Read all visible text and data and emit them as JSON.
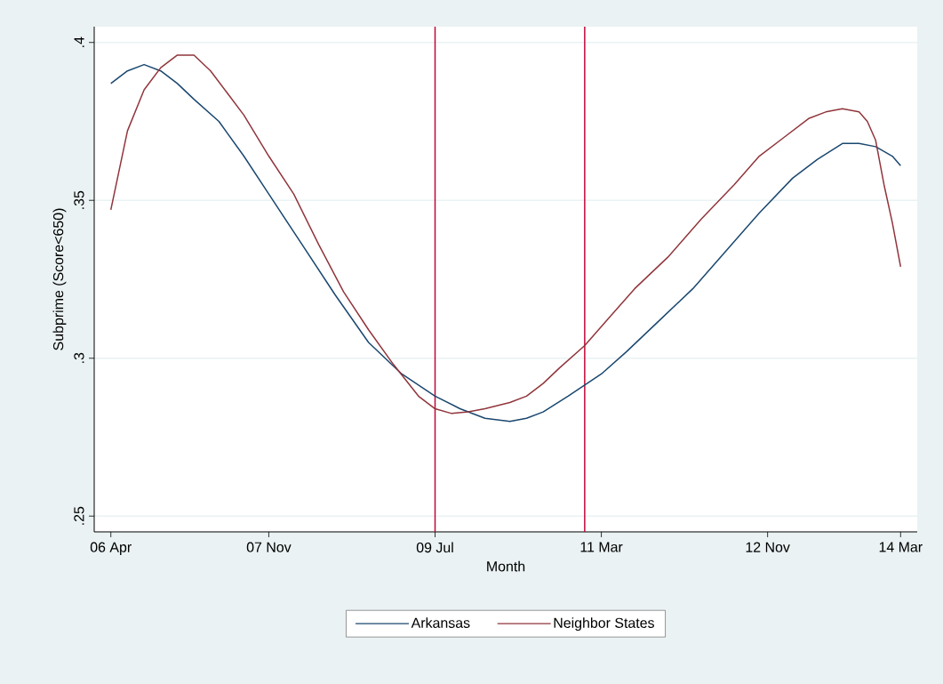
{
  "chart_data": {
    "type": "line",
    "xlabel": "Month",
    "ylabel": "Subprime (Score<650)",
    "xlim": [
      "2006-02",
      "2014-05"
    ],
    "ylim": [
      0.245,
      0.405
    ],
    "xticks": [
      {
        "value": "2006-04",
        "label": "06 Apr"
      },
      {
        "value": "2007-11",
        "label": "07 Nov"
      },
      {
        "value": "2009-07",
        "label": "09 Jul"
      },
      {
        "value": "2011-03",
        "label": "11 Mar"
      },
      {
        "value": "2012-11",
        "label": "12 Nov"
      },
      {
        "value": "2014-03",
        "label": "14 Mar"
      }
    ],
    "yticks": [
      {
        "value": 0.25,
        "label": ".25"
      },
      {
        "value": 0.3,
        "label": ".3"
      },
      {
        "value": 0.35,
        "label": ".35"
      },
      {
        "value": 0.4,
        "label": ".4"
      }
    ],
    "grid": "y",
    "legend": "bottom",
    "series": [
      {
        "name": "Arkansas",
        "color": "#1a476f",
        "x": [
          "2006-04",
          "2006-06",
          "2006-08",
          "2006-10",
          "2006-12",
          "2007-02",
          "2007-05",
          "2007-08",
          "2007-11",
          "2008-03",
          "2008-07",
          "2008-11",
          "2009-03",
          "2009-07",
          "2009-10",
          "2010-01",
          "2010-04",
          "2010-06",
          "2010-08",
          "2010-11",
          "2011-03",
          "2011-06",
          "2011-10",
          "2012-02",
          "2012-06",
          "2012-10",
          "2013-02",
          "2013-05",
          "2013-08",
          "2013-10",
          "2013-12",
          "2014-02",
          "2014-03"
        ],
        "values": [
          0.387,
          0.391,
          0.393,
          0.391,
          0.387,
          0.382,
          0.375,
          0.364,
          0.352,
          0.336,
          0.32,
          0.305,
          0.295,
          0.288,
          0.284,
          0.281,
          0.28,
          0.281,
          0.283,
          0.288,
          0.295,
          0.302,
          0.312,
          0.322,
          0.334,
          0.346,
          0.357,
          0.363,
          0.368,
          0.368,
          0.367,
          0.364,
          0.361
        ]
      },
      {
        "name": "Neighbor States",
        "color": "#90353b",
        "x": [
          "2006-04",
          "2006-06",
          "2006-08",
          "2006-10",
          "2006-12",
          "2007-02",
          "2007-04",
          "2007-06",
          "2007-08",
          "2007-11",
          "2008-02",
          "2008-05",
          "2008-08",
          "2008-11",
          "2009-02",
          "2009-05",
          "2009-07",
          "2009-09",
          "2009-11",
          "2010-01",
          "2010-04",
          "2010-06",
          "2010-08",
          "2010-10",
          "2011-01",
          "2011-04",
          "2011-07",
          "2011-11",
          "2012-03",
          "2012-07",
          "2012-10",
          "2013-01",
          "2013-04",
          "2013-06",
          "2013-08",
          "2013-10",
          "2013-11",
          "2013-12",
          "2014-01",
          "2014-02",
          "2014-03"
        ],
        "values": [
          0.347,
          0.372,
          0.385,
          0.392,
          0.396,
          0.396,
          0.391,
          0.384,
          0.377,
          0.364,
          0.352,
          0.336,
          0.321,
          0.309,
          0.298,
          0.288,
          0.284,
          0.2825,
          0.283,
          0.284,
          0.286,
          0.288,
          0.292,
          0.297,
          0.304,
          0.313,
          0.322,
          0.332,
          0.344,
          0.355,
          0.364,
          0.37,
          0.376,
          0.378,
          0.379,
          0.378,
          0.375,
          0.369,
          0.355,
          0.343,
          0.329
        ]
      }
    ],
    "ref_lines": [
      {
        "axis": "x",
        "value": "2009-07",
        "color": "#c10534"
      },
      {
        "axis": "x",
        "value": "2011-01",
        "color": "#c10534"
      }
    ]
  }
}
